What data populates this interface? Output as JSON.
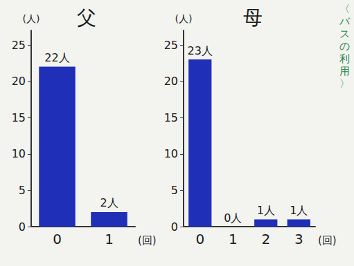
{
  "chart_data": [
    {
      "type": "bar",
      "title": "父",
      "xlabel": "(回)",
      "ylabel": "(人)",
      "categories": [
        "0",
        "1"
      ],
      "values": [
        22,
        2
      ],
      "value_labels": [
        "22人",
        "2人"
      ],
      "color": "#1f2fb8",
      "ylim": [
        0,
        27
      ],
      "yticks": [
        0,
        5,
        10,
        15,
        20,
        25
      ],
      "grid": false,
      "data_labels": true
    },
    {
      "type": "bar",
      "title": "母",
      "xlabel": "(回)",
      "ylabel": "(人)",
      "categories": [
        "0",
        "1",
        "2",
        "3"
      ],
      "values": [
        23,
        0,
        1,
        1
      ],
      "value_labels": [
        "23人",
        "0人",
        "1人",
        "1人"
      ],
      "color": "#1f2fb8",
      "ylim": [
        0,
        27
      ],
      "yticks": [
        0,
        5,
        10,
        15,
        20,
        25
      ],
      "grid": false,
      "data_labels": true,
      "annotation": "〈バスの利用〉"
    }
  ]
}
